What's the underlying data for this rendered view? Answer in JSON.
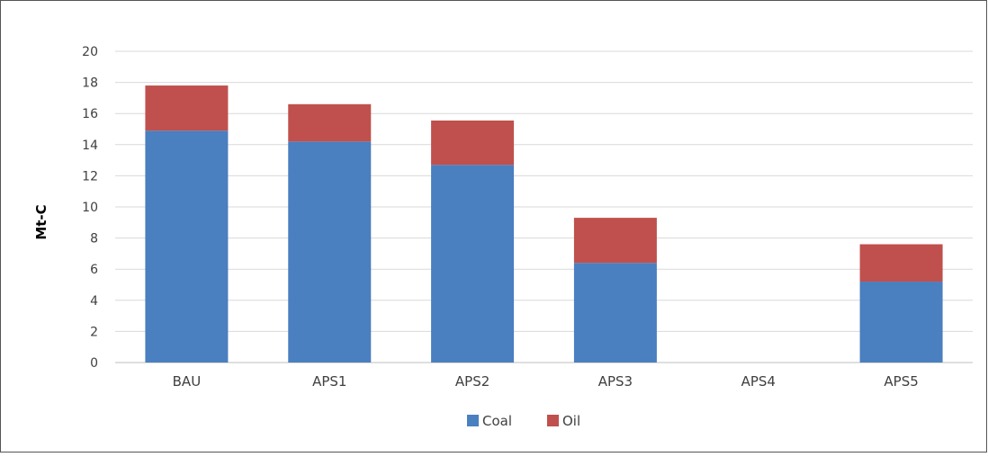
{
  "chart_data": {
    "type": "bar",
    "stacked": true,
    "categories": [
      "BAU",
      "APS1",
      "APS2",
      "APS3",
      "APS4",
      "APS5"
    ],
    "series": [
      {
        "name": "Coal",
        "values": [
          14.9,
          14.2,
          12.7,
          6.4,
          0,
          5.2
        ],
        "color": "#4a7fc0"
      },
      {
        "name": "Oil",
        "values": [
          2.9,
          2.4,
          2.85,
          2.9,
          0,
          2.4
        ],
        "color": "#c0504d"
      }
    ],
    "ylabel": "Mt-C",
    "xlabel": "",
    "ylim": [
      0,
      20
    ],
    "yticks": [
      0,
      2,
      4,
      6,
      8,
      10,
      12,
      14,
      16,
      18,
      20
    ],
    "grid": true,
    "legend_position": "bottom"
  }
}
